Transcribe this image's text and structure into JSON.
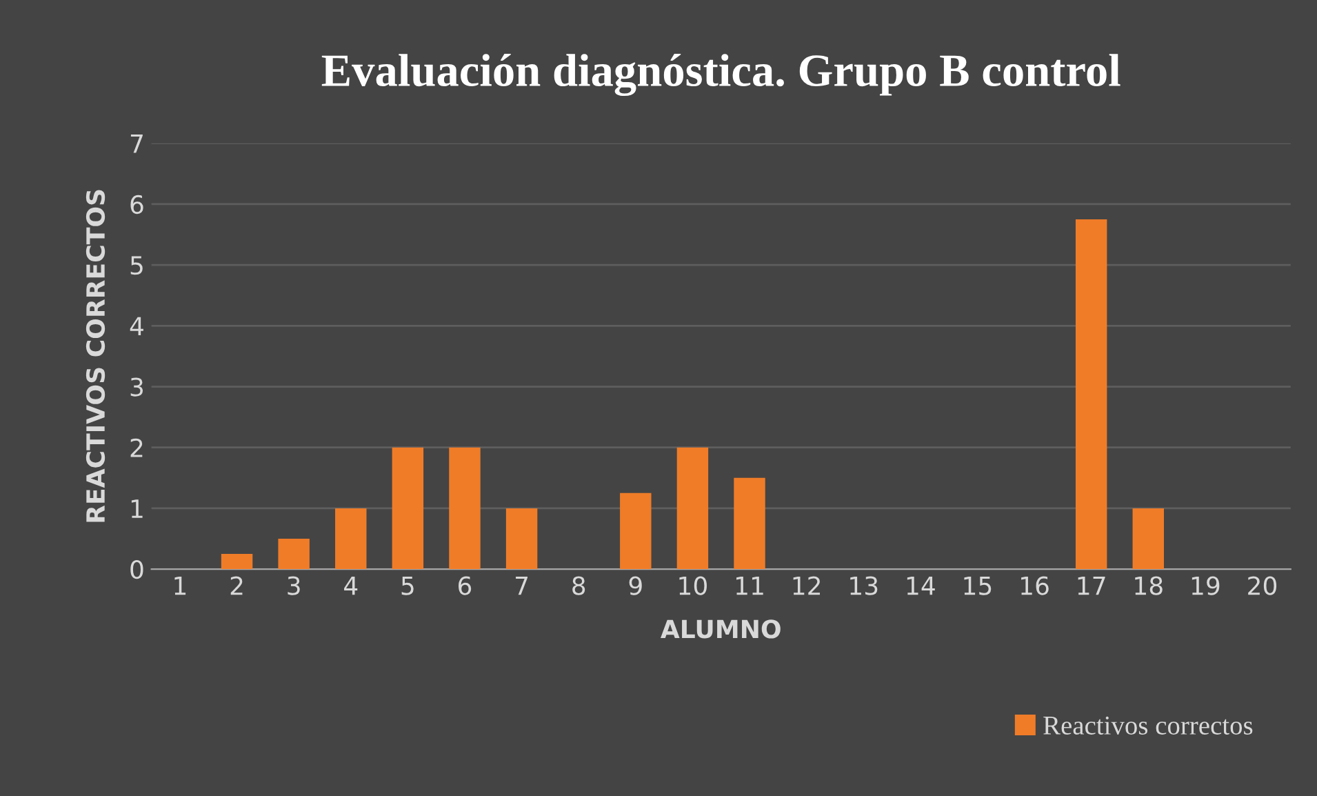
{
  "chart_data": {
    "type": "bar",
    "title": "Evaluación diagnóstica. Grupo B control",
    "xlabel": "ALUMNO",
    "ylabel": "REACTIVOS CORRECTOS",
    "categories": [
      "1",
      "2",
      "3",
      "4",
      "5",
      "6",
      "7",
      "8",
      "9",
      "10",
      "11",
      "12",
      "13",
      "14",
      "15",
      "16",
      "17",
      "18",
      "19",
      "20"
    ],
    "series": [
      {
        "name": "Reactivos correctos",
        "color": "#f07c28",
        "values": [
          0,
          0.25,
          0.5,
          1,
          2,
          2,
          1,
          0,
          1.25,
          2,
          1.5,
          0,
          0,
          0,
          0,
          0,
          5.75,
          1,
          0,
          0
        ]
      }
    ],
    "ylim": [
      0,
      7
    ],
    "yticks": [
      0,
      1,
      2,
      3,
      4,
      5,
      6,
      7
    ],
    "grid": "y",
    "legend": "bottom right"
  }
}
